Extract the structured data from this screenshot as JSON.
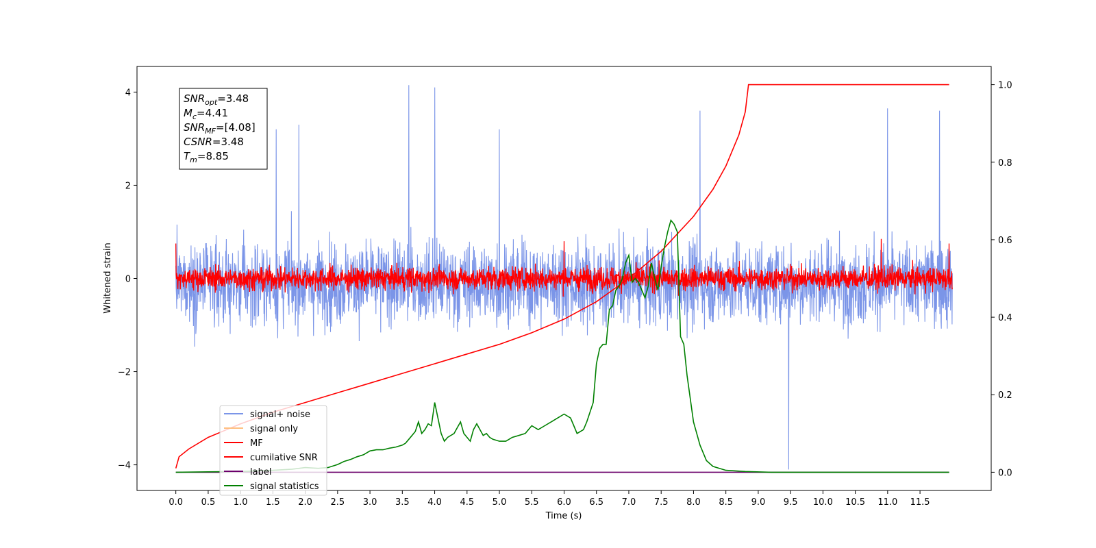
{
  "chart_data": {
    "type": "line",
    "title": "",
    "xlabel": "Time (s)",
    "ylabel": "Whitened strain",
    "ylabel_right": "",
    "xlim": [
      -0.6,
      12.6
    ],
    "ylim": [
      -4.55,
      4.55
    ],
    "ylim_right": [
      -0.047,
      1.047
    ],
    "x_ticks": [
      0.0,
      0.5,
      1.0,
      1.5,
      2.0,
      2.5,
      3.0,
      3.5,
      4.0,
      4.5,
      5.0,
      5.5,
      6.0,
      6.5,
      7.0,
      7.5,
      8.0,
      8.5,
      9.0,
      9.5,
      10.0,
      10.5,
      11.0,
      11.5
    ],
    "x_tick_labels": [
      "0.0",
      "0.5",
      "1.0",
      "1.5",
      "2.0",
      "2.5",
      "3.0",
      "3.5",
      "4.0",
      "4.5",
      "5.0",
      "5.5",
      "6.0",
      "6.5",
      "7.0",
      "7.5",
      "8.0",
      "8.5",
      "9.0",
      "9.5",
      "10.0",
      "10.5",
      "11.0",
      "11.5"
    ],
    "y_ticks": [
      -4,
      -2,
      0,
      2,
      4
    ],
    "y_tick_labels": [
      "−4",
      "−2",
      "0",
      "2",
      "4"
    ],
    "y_ticks_right": [
      0.0,
      0.2,
      0.4,
      0.6,
      0.8,
      1.0
    ],
    "y_tick_labels_right": [
      "0.0",
      "0.2",
      "0.4",
      "0.6",
      "0.8",
      "1.0"
    ],
    "legend_position": "lower-left",
    "annotation": {
      "lines": [
        {
          "base": "SNR",
          "sub": "opt",
          "value": "=3.48"
        },
        {
          "base": "M",
          "sub": "c",
          "value": "=4.41"
        },
        {
          "base": "SNR",
          "sub": "MF",
          "value": "=[4.08]"
        },
        {
          "base": "CSNR",
          "sub": "",
          "value": "=3.48"
        },
        {
          "base": "T",
          "sub": "m",
          "value": "=8.85"
        }
      ]
    },
    "series": [
      {
        "name": "signal+ noise",
        "color": "#7b95e8",
        "axis": "left",
        "style": "noise",
        "x_range": [
          0,
          12
        ],
        "mean": -0.1,
        "spread": 1.0,
        "peaks": [
          [
            3.6,
            4.15
          ],
          [
            4.0,
            4.1
          ],
          [
            5.0,
            3.2
          ],
          [
            8.1,
            3.6
          ],
          [
            11.0,
            3.65
          ],
          [
            11.8,
            3.6
          ],
          [
            9.47,
            -4.1
          ],
          [
            1.55,
            3.2
          ],
          [
            1.9,
            3.3
          ]
        ]
      },
      {
        "name": "signal only",
        "color": "#ffbf7f",
        "axis": "left",
        "style": "hidden",
        "x": [
          0,
          12
        ],
        "y": [
          0,
          0
        ]
      },
      {
        "name": "MF",
        "color": "#ff0000",
        "axis": "left",
        "style": "noise",
        "x_range": [
          0,
          12
        ],
        "mean": 0.0,
        "spread": 0.28,
        "peaks": [
          [
            0.0,
            0.75
          ],
          [
            6.0,
            0.8
          ],
          [
            10.9,
            0.85
          ],
          [
            11.95,
            0.75
          ]
        ]
      },
      {
        "name": "cumilative SNR",
        "color": "#ff0000",
        "axis": "right",
        "style": "line",
        "x": [
          0.0,
          0.05,
          0.2,
          0.5,
          1.0,
          1.5,
          2.0,
          2.5,
          3.0,
          3.5,
          4.0,
          4.5,
          5.0,
          5.5,
          6.0,
          6.5,
          7.0,
          7.5,
          8.0,
          8.3,
          8.5,
          8.7,
          8.8,
          8.85,
          9.0,
          10.0,
          11.0,
          11.95
        ],
        "y": [
          0.01,
          0.04,
          0.06,
          0.09,
          0.125,
          0.155,
          0.18,
          0.205,
          0.23,
          0.255,
          0.28,
          0.305,
          0.33,
          0.36,
          0.395,
          0.44,
          0.5,
          0.57,
          0.66,
          0.73,
          0.79,
          0.87,
          0.93,
          1.0,
          1.0,
          1.0,
          1.0,
          1.0
        ]
      },
      {
        "name": "label",
        "color": "#6b006b",
        "axis": "right",
        "style": "line",
        "x": [
          0.0,
          11.95
        ],
        "y": [
          0.0,
          0.0
        ]
      },
      {
        "name": "signal statistics",
        "color": "#008000",
        "axis": "right",
        "style": "line",
        "x": [
          0.0,
          0.5,
          1.0,
          1.5,
          1.8,
          2.0,
          2.2,
          2.35,
          2.5,
          2.6,
          2.7,
          2.8,
          2.9,
          3.0,
          3.1,
          3.2,
          3.3,
          3.4,
          3.5,
          3.55,
          3.6,
          3.65,
          3.7,
          3.75,
          3.8,
          3.85,
          3.9,
          3.95,
          4.0,
          4.05,
          4.1,
          4.15,
          4.2,
          4.3,
          4.35,
          4.4,
          4.45,
          4.5,
          4.55,
          4.6,
          4.65,
          4.7,
          4.75,
          4.8,
          4.85,
          4.9,
          5.0,
          5.1,
          5.2,
          5.3,
          5.4,
          5.5,
          5.55,
          5.6,
          5.7,
          5.8,
          5.9,
          6.0,
          6.1,
          6.15,
          6.2,
          6.3,
          6.35,
          6.45,
          6.5,
          6.55,
          6.6,
          6.65,
          6.7,
          6.75,
          6.8,
          6.85,
          6.9,
          6.95,
          7.0,
          7.05,
          7.1,
          7.15,
          7.2,
          7.25,
          7.3,
          7.35,
          7.4,
          7.45,
          7.5,
          7.55,
          7.6,
          7.65,
          7.7,
          7.75,
          7.8,
          7.85,
          7.9,
          8.0,
          8.1,
          8.2,
          8.3,
          8.5,
          8.8,
          9.2,
          10.0,
          11.0,
          11.95
        ],
        "y": [
          0.0,
          0.001,
          0.002,
          0.005,
          0.008,
          0.012,
          0.01,
          0.012,
          0.02,
          0.028,
          0.033,
          0.04,
          0.045,
          0.055,
          0.058,
          0.058,
          0.062,
          0.065,
          0.07,
          0.075,
          0.085,
          0.095,
          0.105,
          0.13,
          0.1,
          0.11,
          0.125,
          0.12,
          0.18,
          0.14,
          0.1,
          0.08,
          0.09,
          0.1,
          0.115,
          0.13,
          0.1,
          0.09,
          0.08,
          0.11,
          0.125,
          0.11,
          0.095,
          0.1,
          0.09,
          0.085,
          0.08,
          0.08,
          0.09,
          0.095,
          0.1,
          0.12,
          0.115,
          0.11,
          0.12,
          0.13,
          0.14,
          0.15,
          0.14,
          0.12,
          0.1,
          0.11,
          0.13,
          0.18,
          0.28,
          0.32,
          0.33,
          0.33,
          0.42,
          0.43,
          0.47,
          0.48,
          0.5,
          0.54,
          0.56,
          0.49,
          0.5,
          0.49,
          0.47,
          0.45,
          0.48,
          0.54,
          0.5,
          0.47,
          0.53,
          0.58,
          0.62,
          0.65,
          0.64,
          0.62,
          0.35,
          0.33,
          0.25,
          0.13,
          0.07,
          0.03,
          0.015,
          0.005,
          0.002,
          0.0,
          0.0,
          0.0,
          0.0
        ]
      }
    ]
  }
}
